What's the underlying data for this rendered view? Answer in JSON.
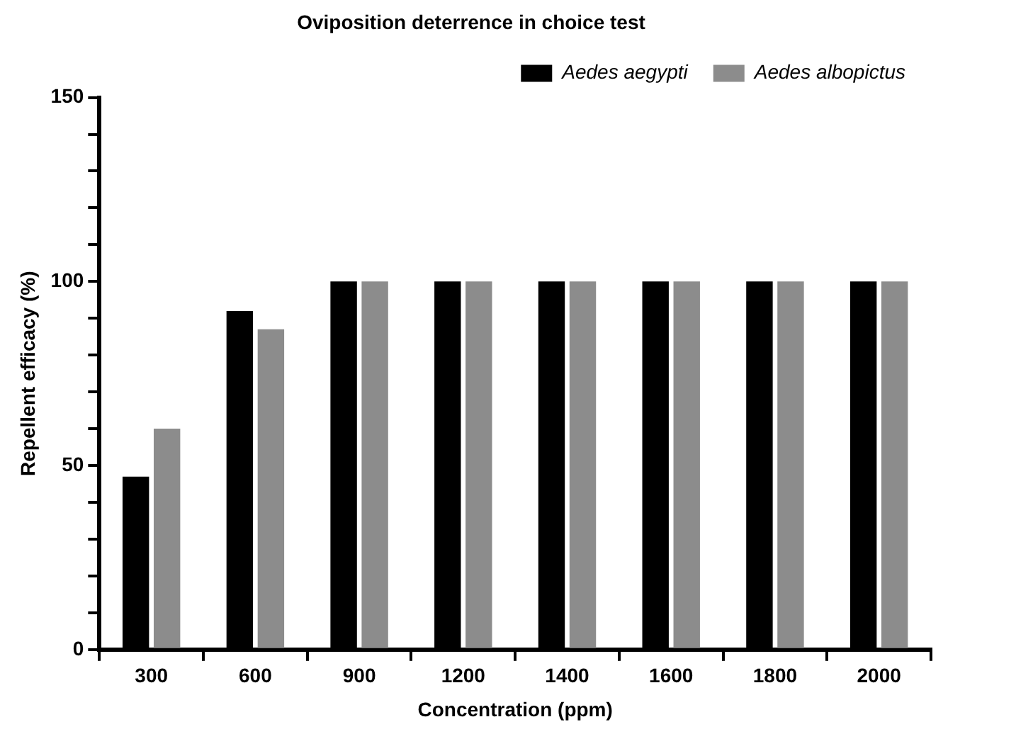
{
  "chart_data": {
    "type": "bar",
    "title": "Oviposition deterrence in choice test",
    "xlabel": "Concentration (ppm)",
    "ylabel": "Repellent efficacy (%)",
    "categories": [
      "300",
      "600",
      "900",
      "1200",
      "1400",
      "1600",
      "1800",
      "2000"
    ],
    "series": [
      {
        "name": "Aedes aegypti",
        "color": "#000000",
        "values": [
          47,
          92,
          100,
          100,
          100,
          100,
          100,
          100
        ]
      },
      {
        "name": "Aedes albopictus",
        "color": "#8c8c8c",
        "values": [
          60,
          87,
          100,
          100,
          100,
          100,
          100,
          100
        ]
      }
    ],
    "ylim": [
      0,
      150
    ],
    "yticks": [
      0,
      {
        "value": 10,
        "label": null
      },
      {
        "value": 20,
        "label": null
      },
      {
        "value": 30,
        "label": null
      },
      {
        "value": 40,
        "label": null
      },
      50,
      {
        "value": 60,
        "label": null
      },
      {
        "value": 70,
        "label": null
      },
      {
        "value": 80,
        "label": null
      },
      {
        "value": 90,
        "label": null
      },
      100,
      {
        "value": 110,
        "label": null
      },
      {
        "value": 120,
        "label": null
      },
      {
        "value": 130,
        "label": null
      },
      {
        "value": 140,
        "label": null
      },
      150
    ],
    "grid": false,
    "legend": "top right"
  }
}
